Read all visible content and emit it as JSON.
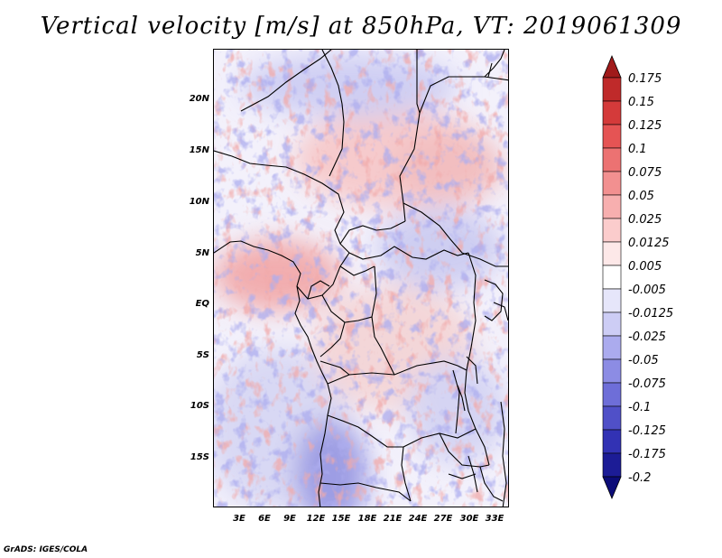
{
  "title": "Vertical velocity [m/s] at 850hPa, VT: 2019061309",
  "footer": "GrADS: IGES/COLA",
  "axes": {
    "lat_labels": [
      "20N",
      "15N",
      "10N",
      "5N",
      "EQ",
      "5S",
      "10S",
      "15S"
    ],
    "lon_labels": [
      "3E",
      "6E",
      "9E",
      "12E",
      "15E",
      "18E",
      "21E",
      "24E",
      "27E",
      "30E",
      "33E"
    ]
  },
  "colorbar": {
    "labels": [
      "0.175",
      "0.15",
      "0.125",
      "0.1",
      "0.075",
      "0.05",
      "0.025",
      "0.0125",
      "0.005",
      "-0.005",
      "-0.0125",
      "-0.025",
      "-0.05",
      "-0.075",
      "-0.1",
      "-0.125",
      "-0.175",
      "-0.2"
    ],
    "colors": [
      "#a01a1a",
      "#bf2a2a",
      "#d43a3a",
      "#e55454",
      "#ec7272",
      "#f29090",
      "#f7afaf",
      "#fbcccc",
      "#fde8e8",
      "#ffffff",
      "#e6e6fa",
      "#cdcdf5",
      "#ababee",
      "#8c8ce4",
      "#6e6ed8",
      "#5050c8",
      "#3232b4",
      "#1c1c96",
      "#0c0c78"
    ]
  }
}
